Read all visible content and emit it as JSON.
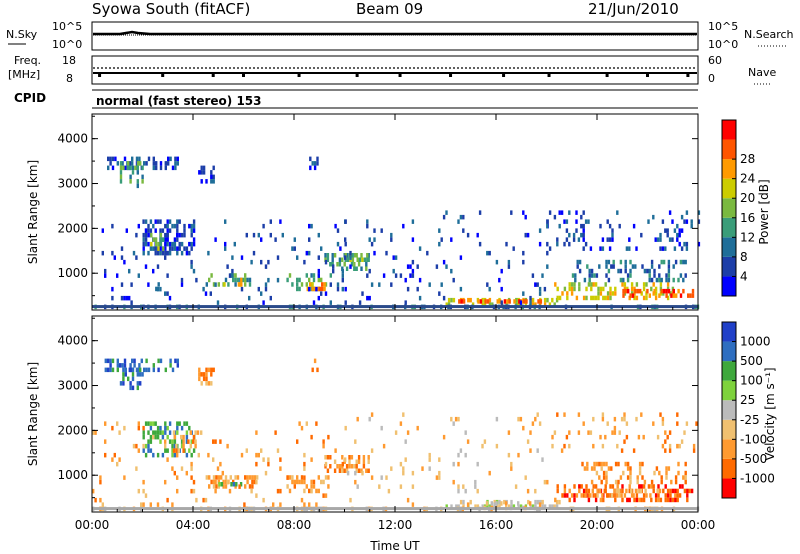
{
  "header": {
    "station": "Syowa South (fitACF)",
    "beam": "Beam 09",
    "date": "21/Jun/2010"
  },
  "top_panels": {
    "nsky_label": "N.Sky",
    "nsearch_label": "N.Search",
    "nsky_ticks": [
      "10^5",
      "10^0"
    ],
    "nsearch_ticks": [
      "10^5",
      "10^0"
    ],
    "freq_label_1": "Freq.",
    "freq_label_2": "[MHz]",
    "freq_ticks": [
      "18",
      "8"
    ],
    "nave_label": "Nave",
    "nave_ticks": [
      "60",
      "0"
    ],
    "cpid_label": "CPID",
    "cpid_text": "normal (fast stereo) 153"
  },
  "colors": {
    "power": [
      "#0000ff",
      "#1c3ea8",
      "#1f6e99",
      "#3a9d79",
      "#7ab940",
      "#cccc00",
      "#ff9a00",
      "#ff5500",
      "#ff0000"
    ],
    "velocity": [
      "#ff0000",
      "#ff6a00",
      "#ff9a30",
      "#f0c070",
      "#bbbbbb",
      "#7ed23c",
      "#3ea83c",
      "#2e6ec0",
      "#2040c8"
    ],
    "ground": "#a8a8a8"
  },
  "chart_data": [
    {
      "type": "heatmap",
      "name": "power-panel",
      "xlabel": "",
      "ylabel": "Slant Range [km]",
      "yticks": [
        "1000",
        "2000",
        "3000",
        "4000"
      ],
      "ylim": [
        180,
        4550
      ],
      "xlim": [
        0,
        24
      ],
      "colorbar": {
        "label": "Power [dB]",
        "ticks": [
          "4",
          "8",
          "12",
          "16",
          "20",
          "24",
          "28"
        ],
        "range": [
          0,
          32
        ]
      },
      "patches": [
        {
          "t": [
            0.5,
            3.5
          ],
          "r": [
            3300,
            3600
          ],
          "level": 1,
          "density": 0.45
        },
        {
          "t": [
            1.1,
            2.0
          ],
          "r": [
            2900,
            3500
          ],
          "level": 3,
          "density": 0.35
        },
        {
          "t": [
            4.2,
            4.8
          ],
          "r": [
            3000,
            3400
          ],
          "level": 1,
          "density": 0.4
        },
        {
          "t": [
            8.6,
            8.9
          ],
          "r": [
            3300,
            3600
          ],
          "level": 1,
          "density": 0.5
        },
        {
          "t": [
            2.0,
            4.0
          ],
          "r": [
            1400,
            2200
          ],
          "level": 1,
          "density": 0.45
        },
        {
          "t": [
            2.3,
            2.8
          ],
          "r": [
            1500,
            1900
          ],
          "level": 4,
          "density": 0.5
        },
        {
          "t": [
            2.5,
            3.2
          ],
          "r": [
            600,
            900
          ],
          "level": 2,
          "density": 0.3
        },
        {
          "t": [
            4.5,
            6.3
          ],
          "r": [
            700,
            1000
          ],
          "level": 3,
          "density": 0.45
        },
        {
          "t": [
            5.2,
            6.0
          ],
          "r": [
            750,
            900
          ],
          "level": 5,
          "density": 0.4
        },
        {
          "t": [
            7.7,
            9.5
          ],
          "r": [
            600,
            1000
          ],
          "level": 3,
          "density": 0.35
        },
        {
          "t": [
            8.5,
            9.2
          ],
          "r": [
            650,
            800
          ],
          "level": 6,
          "density": 0.3
        },
        {
          "t": [
            9.2,
            11.0
          ],
          "r": [
            1050,
            1450
          ],
          "level": 3,
          "density": 0.4
        },
        {
          "t": [
            10.0,
            11.0
          ],
          "r": [
            1300,
            1450
          ],
          "level": 4,
          "density": 0.4
        },
        {
          "t": [
            14.0,
            18.5
          ],
          "r": [
            250,
            450
          ],
          "level": 5,
          "density": 0.5
        },
        {
          "t": [
            14.5,
            18.0
          ],
          "r": [
            350,
            420
          ],
          "level": 7,
          "density": 0.55
        },
        {
          "t": [
            18.3,
            23.0
          ],
          "r": [
            400,
            800
          ],
          "level": 5,
          "density": 0.45
        },
        {
          "t": [
            21.0,
            23.8
          ],
          "r": [
            450,
            650
          ],
          "level": 7,
          "density": 0.4
        },
        {
          "t": [
            19.0,
            23.5
          ],
          "r": [
            800,
            1300
          ],
          "level": 2,
          "density": 0.3
        },
        {
          "t": [
            18.0,
            24.0
          ],
          "r": [
            1500,
            2400
          ],
          "level": 1,
          "density": 0.15
        },
        {
          "t": [
            0.0,
            24.0
          ],
          "r": [
            200,
            300
          ],
          "level": 2,
          "density": 0.25
        },
        {
          "t": [
            0.0,
            10.0
          ],
          "r": [
            300,
            2200
          ],
          "level": 1,
          "density": 0.06
        },
        {
          "t": [
            10.0,
            18.0
          ],
          "r": [
            300,
            2400
          ],
          "level": 1,
          "density": 0.05
        }
      ]
    },
    {
      "type": "heatmap",
      "name": "velocity-panel",
      "xlabel": "Time UT",
      "ylabel": "Slant Range [km]",
      "xticks": [
        "00:00",
        "04:00",
        "08:00",
        "12:00",
        "16:00",
        "20:00",
        "00:00"
      ],
      "yticks": [
        "1000",
        "2000",
        "3000",
        "4000"
      ],
      "ylim": [
        180,
        4550
      ],
      "xlim": [
        0,
        24
      ],
      "colorbar": {
        "label": "Velocity [m s⁻¹]",
        "ticks": [
          "-1000",
          "-500",
          "-100",
          "-25",
          "25",
          "100",
          "500",
          "1000"
        ],
        "range": [
          -1000,
          1000
        ]
      },
      "patches": [
        {
          "t": [
            0.5,
            3.5
          ],
          "r": [
            3300,
            3600
          ],
          "level": 7,
          "density": 0.45
        },
        {
          "t": [
            1.1,
            2.0
          ],
          "r": [
            2900,
            3500
          ],
          "level": 7,
          "density": 0.3
        },
        {
          "t": [
            4.2,
            4.8
          ],
          "r": [
            3000,
            3400
          ],
          "level": 2,
          "density": 0.35
        },
        {
          "t": [
            8.6,
            8.9
          ],
          "r": [
            3300,
            3600
          ],
          "level": 1,
          "density": 0.5
        },
        {
          "t": [
            2.0,
            4.0
          ],
          "r": [
            1400,
            2200
          ],
          "level": 6,
          "density": 0.4
        },
        {
          "t": [
            3.2,
            4.2
          ],
          "r": [
            1500,
            2000
          ],
          "level": 2,
          "density": 0.35
        },
        {
          "t": [
            4.5,
            6.5
          ],
          "r": [
            700,
            1000
          ],
          "level": 2,
          "density": 0.45
        },
        {
          "t": [
            5.0,
            6.0
          ],
          "r": [
            750,
            950
          ],
          "level": 6,
          "density": 0.3
        },
        {
          "t": [
            7.7,
            9.5
          ],
          "r": [
            600,
            1000
          ],
          "level": 2,
          "density": 0.35
        },
        {
          "t": [
            9.2,
            11.0
          ],
          "r": [
            1050,
            1450
          ],
          "level": 2,
          "density": 0.45
        },
        {
          "t": [
            14.0,
            18.5
          ],
          "r": [
            250,
            450
          ],
          "level": 4,
          "density": 0.5
        },
        {
          "t": [
            15.5,
            17.5
          ],
          "r": [
            300,
            420
          ],
          "level": 3,
          "density": 0.3
        },
        {
          "t": [
            18.3,
            23.8
          ],
          "r": [
            450,
            800
          ],
          "level": 1,
          "density": 0.5
        },
        {
          "t": [
            19.5,
            22.5
          ],
          "r": [
            550,
            700
          ],
          "level": 2,
          "density": 0.4
        },
        {
          "t": [
            19.0,
            23.5
          ],
          "r": [
            800,
            1300
          ],
          "level": 2,
          "density": 0.25
        },
        {
          "t": [
            18.0,
            24.0
          ],
          "r": [
            1500,
            2400
          ],
          "level": 2,
          "density": 0.12
        },
        {
          "t": [
            0.0,
            24.0
          ],
          "r": [
            200,
            300
          ],
          "level": 3,
          "density": 0.25
        },
        {
          "t": [
            0.0,
            10.0
          ],
          "r": [
            300,
            2200
          ],
          "level": 2,
          "density": 0.06
        },
        {
          "t": [
            10.0,
            18.0
          ],
          "r": [
            300,
            2400
          ],
          "level": 3,
          "density": 0.05
        }
      ]
    }
  ]
}
